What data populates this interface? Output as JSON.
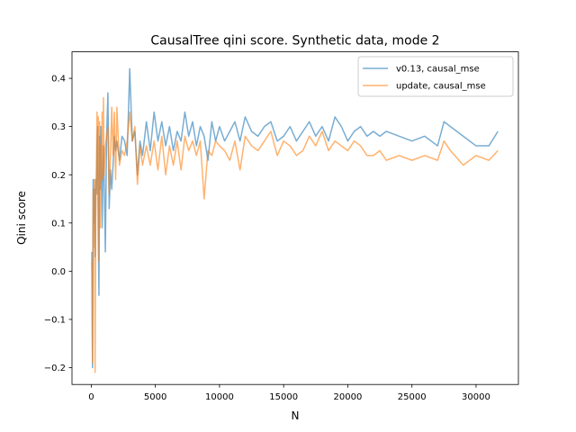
{
  "chart_data": {
    "type": "line",
    "title": "CausalTree qini score. Synthetic data, mode 2",
    "xlabel": "N",
    "ylabel": "Qini score",
    "xlim": [
      -1500,
      33300
    ],
    "ylim": [
      -0.235,
      0.455
    ],
    "xticks": [
      0,
      5000,
      10000,
      15000,
      20000,
      25000,
      30000
    ],
    "xtick_labels": [
      "0",
      "5000",
      "10000",
      "15000",
      "20000",
      "25000",
      "30000"
    ],
    "yticks": [
      -0.2,
      -0.1,
      0.0,
      0.1,
      0.2,
      0.3,
      0.4
    ],
    "ytick_labels": [
      "−0.2",
      "−0.1",
      "0.0",
      "0.1",
      "0.2",
      "0.3",
      "0.4"
    ],
    "grid": false,
    "legend": "top-right",
    "series": [
      {
        "name": "v0.13, causal_mse",
        "color": "#1f77b4",
        "x": [
          50,
          100,
          150,
          200,
          250,
          300,
          350,
          400,
          450,
          500,
          550,
          600,
          650,
          700,
          750,
          800,
          850,
          900,
          950,
          1000,
          1100,
          1200,
          1300,
          1400,
          1500,
          1600,
          1700,
          1800,
          1900,
          2000,
          2200,
          2400,
          2600,
          2800,
          3000,
          3200,
          3400,
          3600,
          3800,
          4000,
          4300,
          4600,
          4900,
          5200,
          5500,
          5800,
          6100,
          6400,
          6700,
          7000,
          7300,
          7600,
          7900,
          8200,
          8500,
          8800,
          9100,
          9400,
          9700,
          10000,
          10400,
          10800,
          11200,
          11600,
          12000,
          12500,
          13000,
          13500,
          14000,
          14500,
          15000,
          15500,
          16000,
          16500,
          17000,
          17500,
          18000,
          18500,
          19000,
          19500,
          20000,
          20500,
          21000,
          21500,
          22000,
          22500,
          23000,
          24000,
          25000,
          26000,
          27000,
          27500,
          28000,
          29000,
          30000,
          31000,
          31700
        ],
        "y": [
          0.04,
          -0.2,
          0.19,
          0.1,
          0.17,
          0.03,
          0.19,
          0.16,
          0.26,
          0.3,
          0.07,
          -0.05,
          0.28,
          0.17,
          0.3,
          0.22,
          0.09,
          0.18,
          0.26,
          0.21,
          0.04,
          0.28,
          0.37,
          0.13,
          0.21,
          0.17,
          0.22,
          0.28,
          0.25,
          0.27,
          0.23,
          0.28,
          0.27,
          0.24,
          0.42,
          0.27,
          0.29,
          0.2,
          0.27,
          0.24,
          0.31,
          0.25,
          0.33,
          0.27,
          0.31,
          0.26,
          0.3,
          0.25,
          0.29,
          0.27,
          0.33,
          0.28,
          0.31,
          0.26,
          0.3,
          0.28,
          0.23,
          0.31,
          0.27,
          0.3,
          0.27,
          0.29,
          0.31,
          0.27,
          0.32,
          0.29,
          0.28,
          0.3,
          0.31,
          0.27,
          0.28,
          0.3,
          0.27,
          0.29,
          0.31,
          0.28,
          0.3,
          0.27,
          0.32,
          0.3,
          0.27,
          0.29,
          0.3,
          0.28,
          0.29,
          0.28,
          0.29,
          0.28,
          0.27,
          0.28,
          0.26,
          0.31,
          0.3,
          0.28,
          0.26,
          0.26,
          0.29
        ]
      },
      {
        "name": "update, causal_mse",
        "color": "#ff7f0e",
        "x": [
          50,
          100,
          150,
          200,
          250,
          300,
          350,
          400,
          450,
          500,
          550,
          600,
          650,
          700,
          750,
          800,
          850,
          900,
          950,
          1000,
          1100,
          1200,
          1300,
          1400,
          1500,
          1600,
          1700,
          1800,
          1900,
          2000,
          2200,
          2400,
          2600,
          2800,
          3000,
          3200,
          3400,
          3600,
          3800,
          4000,
          4300,
          4600,
          4900,
          5200,
          5500,
          5800,
          6100,
          6400,
          6700,
          7000,
          7300,
          7600,
          7900,
          8200,
          8500,
          8800,
          9100,
          9400,
          9700,
          10000,
          10400,
          10800,
          11200,
          11600,
          12000,
          12500,
          13000,
          13500,
          14000,
          14500,
          15000,
          15500,
          16000,
          16500,
          17000,
          17500,
          18000,
          18500,
          19000,
          19500,
          20000,
          20500,
          21000,
          21500,
          22000,
          22500,
          23000,
          24000,
          25000,
          26000,
          27000,
          27500,
          28000,
          29000,
          30000,
          31000,
          31700
        ],
        "y": [
          0.02,
          -0.19,
          0.17,
          0.05,
          0.19,
          -0.21,
          0.11,
          0.2,
          0.33,
          0.16,
          0.32,
          0.02,
          0.31,
          0.09,
          0.26,
          0.19,
          0.33,
          0.19,
          0.36,
          0.2,
          0.26,
          0.28,
          0.3,
          0.16,
          0.24,
          0.34,
          0.24,
          0.33,
          0.19,
          0.34,
          0.22,
          0.25,
          0.24,
          0.27,
          0.33,
          0.27,
          0.3,
          0.18,
          0.26,
          0.22,
          0.26,
          0.22,
          0.27,
          0.21,
          0.28,
          0.2,
          0.26,
          0.22,
          0.27,
          0.21,
          0.28,
          0.25,
          0.27,
          0.24,
          0.27,
          0.15,
          0.25,
          0.24,
          0.27,
          0.26,
          0.25,
          0.23,
          0.27,
          0.21,
          0.28,
          0.26,
          0.25,
          0.27,
          0.29,
          0.24,
          0.27,
          0.26,
          0.24,
          0.25,
          0.28,
          0.26,
          0.29,
          0.25,
          0.27,
          0.26,
          0.25,
          0.27,
          0.26,
          0.24,
          0.24,
          0.25,
          0.23,
          0.24,
          0.23,
          0.24,
          0.23,
          0.27,
          0.25,
          0.22,
          0.24,
          0.23,
          0.25
        ]
      }
    ]
  }
}
